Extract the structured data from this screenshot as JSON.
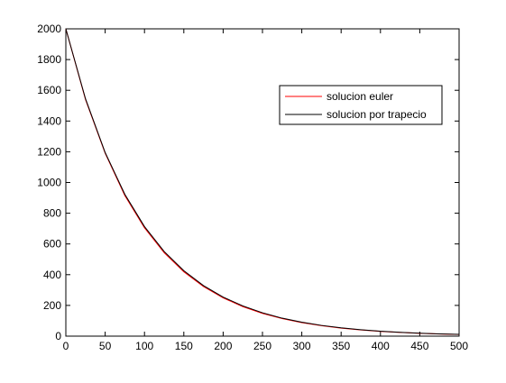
{
  "chart_data": {
    "type": "line",
    "title": "",
    "xlabel": "",
    "ylabel": "",
    "xlim": [
      0,
      500
    ],
    "ylim": [
      0,
      2000
    ],
    "xticks": [
      "0",
      "50",
      "100",
      "150",
      "200",
      "250",
      "300",
      "350",
      "400",
      "450",
      "500"
    ],
    "yticks": [
      "0",
      "200",
      "400",
      "600",
      "800",
      "1000",
      "1200",
      "1400",
      "1600",
      "1800",
      "2000"
    ],
    "grid": false,
    "legend_position": "top-right",
    "x": [
      0,
      25,
      50,
      75,
      100,
      125,
      150,
      175,
      200,
      225,
      250,
      275,
      300,
      325,
      350,
      375,
      400,
      425,
      450,
      475,
      500
    ],
    "series": [
      {
        "name": "solucion euler",
        "color": "#ff0000",
        "values": [
          2000,
          1540,
          1190,
          915,
          705,
          543,
          419,
          323,
          249,
          192,
          148,
          114,
          88,
          68,
          52,
          40,
          31,
          24,
          18,
          14,
          11
        ]
      },
      {
        "name": "solucion por trapecio",
        "color": "#000000",
        "values": [
          2000,
          1545,
          1195,
          923,
          713,
          551,
          426,
          329,
          254,
          197,
          152,
          117,
          91,
          70,
          54,
          42,
          32,
          25,
          19,
          15,
          12
        ]
      }
    ]
  }
}
